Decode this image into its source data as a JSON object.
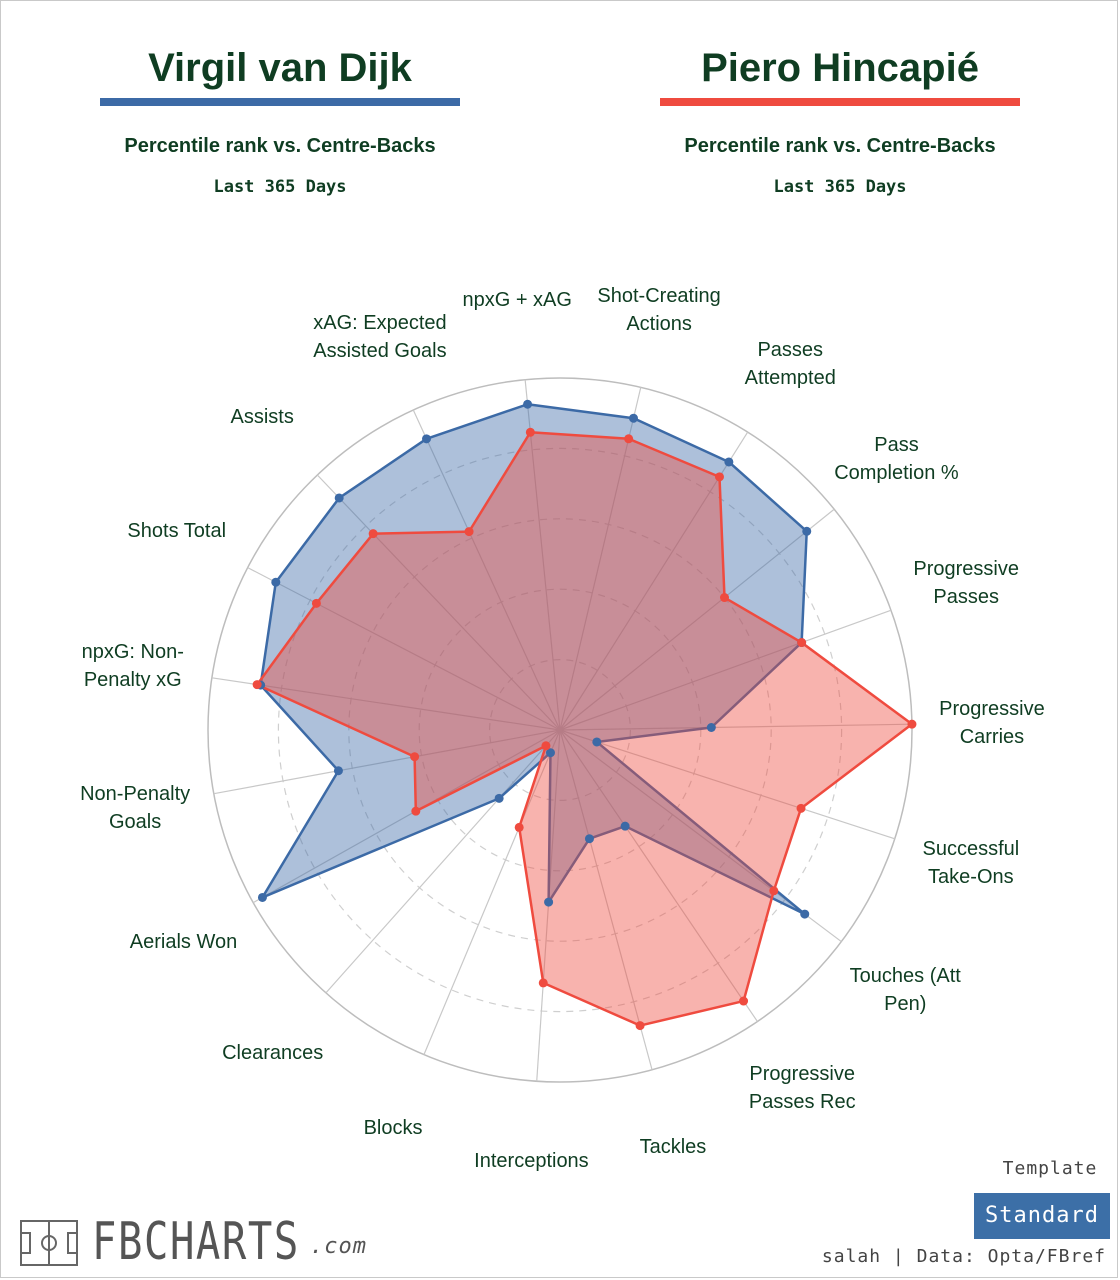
{
  "players": [
    {
      "name": "Virgil van Dijk",
      "color": "#3c6aa6",
      "subtitle": "Percentile rank vs. Centre-Backs",
      "period": "Last 365 Days"
    },
    {
      "name": "Piero Hincapié",
      "color": "#ef4b3f",
      "subtitle": "Percentile rank vs. Centre-Backs",
      "period": "Last 365 Days"
    }
  ],
  "chart_data": {
    "type": "radar",
    "range": [
      0,
      100
    ],
    "categories": [
      "Shot-Creating Actions",
      "Passes Attempted",
      "Pass Completion %",
      "Progressive Passes",
      "Progressive Carries",
      "Successful Take-Ons",
      "Touches (Att Pen)",
      "Progressive Passes Rec",
      "Tackles",
      "Interceptions",
      "Blocks",
      "Clearances",
      "Aerials Won",
      "Non-Penalty Goals",
      "npxG: Non-Penalty xG",
      "Shots Total",
      "Assists",
      "xAG: Expected Assisted Goals",
      "npxG + xAG"
    ],
    "series": [
      {
        "name": "Virgil van Dijk",
        "color": "#3c6aa6",
        "values": [
          91,
          90,
          90,
          73,
          43,
          11,
          87,
          33,
          32,
          49,
          7,
          26,
          97,
          64,
          86,
          91,
          91,
          91,
          93
        ]
      },
      {
        "name": "Piero Hincapié",
        "color": "#ef4b3f",
        "values": [
          85,
          85,
          60,
          73,
          100,
          72,
          76,
          93,
          87,
          72,
          30,
          6,
          47,
          42,
          87,
          78,
          77,
          62,
          85
        ]
      }
    ],
    "grid": "concentric dashed circles at 20/40/60/80, solid outer circle"
  },
  "template": {
    "label": "Template",
    "button": "Standard"
  },
  "credit": "salah | Data: Opta/FBref",
  "brand": {
    "name": "FBCHARTS",
    "suffix": ".com"
  }
}
